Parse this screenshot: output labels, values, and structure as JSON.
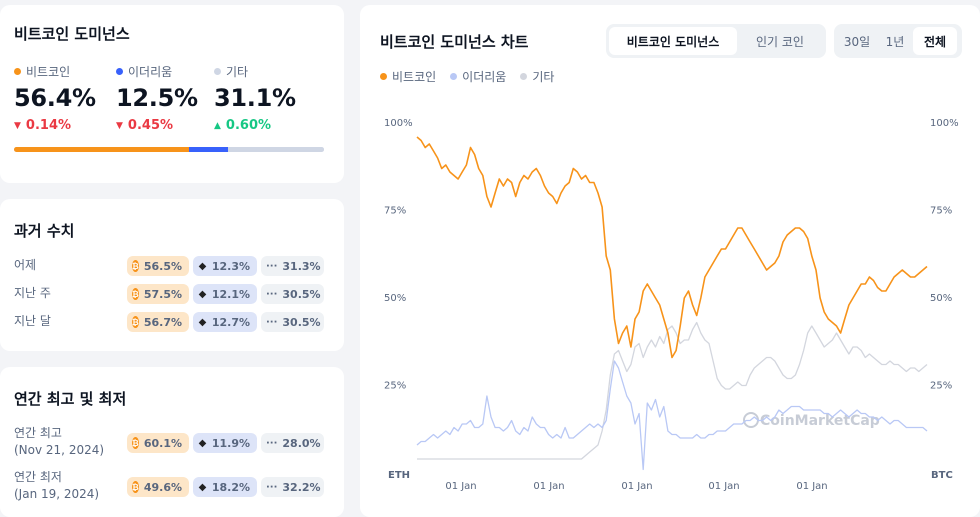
{
  "dominance": {
    "title": "비트코인 도미넌스",
    "items": [
      {
        "label": "비트코인",
        "value": "56.4%",
        "change": "0.14%",
        "direction": "down",
        "color": "#f7931a"
      },
      {
        "label": "이더리움",
        "value": "12.5%",
        "change": "0.45%",
        "direction": "down",
        "color": "#3861fb"
      },
      {
        "label": "기타",
        "value": "31.1%",
        "change": "0.60%",
        "direction": "up",
        "color": "#cfd6e4"
      }
    ],
    "bar": {
      "btc": 56.4,
      "eth": 12.5,
      "other": 31.1
    }
  },
  "history": {
    "title": "과거 수치",
    "rows": [
      {
        "label": "어제",
        "btc": "56.5%",
        "eth": "12.3%",
        "other": "31.3%"
      },
      {
        "label": "지난 주",
        "btc": "57.5%",
        "eth": "12.1%",
        "other": "30.5%"
      },
      {
        "label": "지난 달",
        "btc": "56.7%",
        "eth": "12.7%",
        "other": "30.5%"
      }
    ]
  },
  "yearly": {
    "title": "연간 최고 및 최저",
    "rows": [
      {
        "label": "연간 최고",
        "date": "(Nov 21, 2024)",
        "btc": "60.1%",
        "eth": "11.9%",
        "other": "28.0%"
      },
      {
        "label": "연간 최저",
        "date": "(Jan 19, 2024)",
        "btc": "49.6%",
        "eth": "18.2%",
        "other": "32.2%"
      }
    ]
  },
  "chart_panel": {
    "title": "비트코인 도미넌스 차트",
    "view_tabs": [
      "비트코인 도미넌스",
      "인기 코인"
    ],
    "active_view": "비트코인 도미넌스",
    "range_tabs": [
      "30일",
      "1년",
      "전체"
    ],
    "active_range": "전체",
    "legend": [
      {
        "label": "비트코인",
        "color": "#f7931a"
      },
      {
        "label": "이더리움",
        "color": "#b9c8f5"
      },
      {
        "label": "기타",
        "color": "#d3d6de"
      }
    ],
    "watermark": "CoinMarketCap",
    "icons": {
      "btc": "₿",
      "eth": "◆",
      "other": "···"
    }
  },
  "chart_data": {
    "type": "line",
    "x_labels": [
      "01 Jan",
      "01 Jan",
      "01 Jan",
      "01 Jan",
      "01 Jan"
    ],
    "left_axis_label": "ETH",
    "right_axis_label": "BTC",
    "y_ticks": [
      "100%",
      "75%",
      "50%",
      "25%"
    ],
    "ylim": [
      0,
      100
    ],
    "series": [
      {
        "name": "비트코인",
        "color": "#f7931a",
        "values": [
          96,
          95,
          93,
          94,
          92,
          90,
          87,
          88,
          86,
          85,
          84,
          86,
          88,
          93,
          91,
          87,
          85,
          79,
          76,
          80,
          84,
          82,
          84,
          83,
          79,
          83,
          85,
          84,
          86,
          87,
          85,
          82,
          80,
          79,
          77,
          80,
          82,
          83,
          87,
          86,
          84,
          85,
          83,
          83,
          80,
          76,
          62,
          58,
          44,
          37,
          40,
          42,
          36,
          44,
          46,
          52,
          54,
          52,
          50,
          48,
          44,
          40,
          33,
          35,
          42,
          50,
          52,
          48,
          45,
          50,
          56,
          58,
          60,
          62,
          64,
          64,
          66,
          68,
          70,
          70,
          68,
          66,
          64,
          62,
          60,
          58,
          59,
          60,
          62,
          66,
          68,
          69,
          70,
          70,
          69,
          67,
          62,
          58,
          50,
          46,
          44,
          43,
          42,
          40,
          44,
          48,
          50,
          52,
          54,
          54,
          56,
          55,
          53,
          52,
          52,
          54,
          56,
          57,
          58,
          57,
          56,
          56,
          57,
          58,
          59
        ]
      },
      {
        "name": "이더리움",
        "color": "#b9c8f5",
        "values": [
          8,
          9,
          9,
          10,
          11,
          10,
          11,
          12,
          11,
          13,
          12,
          14,
          14,
          15,
          13,
          13,
          14,
          22,
          16,
          13,
          13,
          12,
          13,
          15,
          12,
          11,
          13,
          12,
          16,
          14,
          13,
          13,
          11,
          10,
          11,
          10,
          13,
          10,
          10,
          11,
          12,
          13,
          14,
          13,
          14,
          13,
          15,
          24,
          32,
          30,
          26,
          22,
          20,
          14,
          17,
          1,
          20,
          18,
          21,
          16,
          19,
          12,
          11,
          11,
          10,
          10,
          10,
          10,
          11,
          10,
          10,
          11,
          11,
          12,
          12,
          12,
          13,
          14,
          14,
          14,
          15,
          15,
          16,
          15,
          15,
          16,
          15,
          16,
          18,
          17,
          18,
          19,
          19,
          19,
          18,
          18,
          18,
          18,
          18,
          17,
          17,
          16,
          17,
          18,
          17,
          16,
          17,
          18,
          17,
          17,
          16,
          16,
          15,
          16,
          15,
          14,
          15,
          15,
          14,
          13,
          13,
          13,
          13,
          13,
          12
        ]
      },
      {
        "name": "기타",
        "color": "#d3d6de",
        "values": [
          4,
          4,
          4,
          4,
          4,
          4,
          4,
          4,
          4,
          4,
          4,
          4,
          4,
          4,
          4,
          4,
          4,
          4,
          4,
          4,
          4,
          4,
          4,
          4,
          4,
          4,
          4,
          4,
          4,
          4,
          4,
          4,
          4,
          4,
          4,
          4,
          4,
          4,
          4,
          4,
          4,
          5,
          6,
          7,
          8,
          12,
          18,
          28,
          34,
          35,
          32,
          29,
          31,
          36,
          37,
          33,
          36,
          38,
          36,
          39,
          37,
          41,
          42,
          40,
          37,
          38,
          38,
          41,
          43,
          40,
          38,
          37,
          32,
          27,
          25,
          24,
          24,
          25,
          26,
          25,
          25,
          28,
          30,
          31,
          32,
          33,
          33,
          32,
          30,
          28,
          27,
          27,
          28,
          31,
          35,
          40,
          42,
          40,
          38,
          36,
          37,
          38,
          40,
          38,
          36,
          34,
          36,
          36,
          35,
          33,
          34,
          33,
          32,
          31,
          31,
          32,
          31,
          31,
          30,
          29,
          30,
          30,
          29,
          30,
          31
        ]
      }
    ]
  }
}
